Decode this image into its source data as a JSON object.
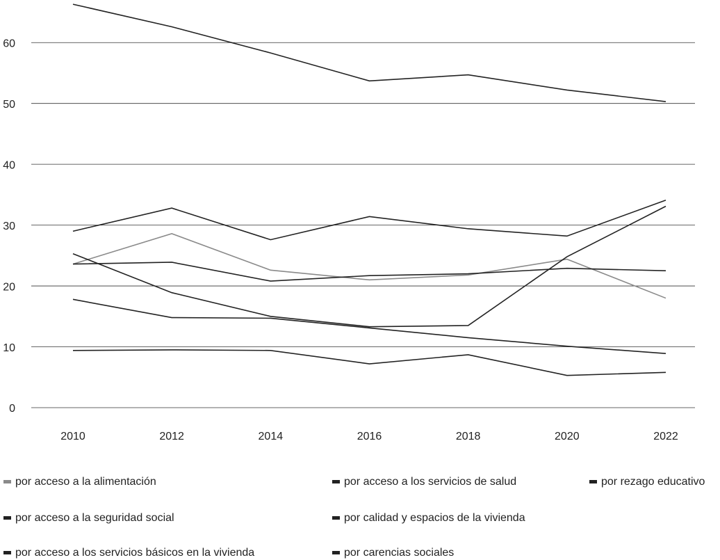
{
  "chart_data": {
    "type": "line",
    "categories": [
      "2010",
      "2012",
      "2014",
      "2016",
      "2018",
      "2020",
      "2022"
    ],
    "ylim": [
      0,
      67
    ],
    "yticks": [
      0,
      10,
      20,
      30,
      40,
      50,
      60
    ],
    "grid": true,
    "series": [
      {
        "name": "por acceso a la alimentación",
        "color": "#8a8a8a",
        "values": [
          23.6,
          28.6,
          22.6,
          21.0,
          21.8,
          24.4,
          18.0
        ]
      },
      {
        "name": "por acceso a los servicios de salud",
        "color": "#222222",
        "values": [
          25.3,
          18.9,
          15.0,
          13.3,
          13.5,
          24.8,
          33.1
        ]
      },
      {
        "name": "por rezago educativo",
        "color": "#222222",
        "values": [
          23.6,
          23.9,
          20.8,
          21.7,
          22.0,
          22.9,
          22.5
        ]
      },
      {
        "name": "por acceso a la seguridad social",
        "color": "#222222",
        "values": [
          66.3,
          62.6,
          58.3,
          53.7,
          54.7,
          52.2,
          50.3
        ]
      },
      {
        "name": "por calidad y espacios de la vivienda",
        "color": "#222222",
        "values": [
          17.8,
          14.8,
          14.7,
          13.1,
          11.5,
          10.1,
          8.9
        ]
      },
      {
        "name": "por acceso a los servicios básicos en la vivienda",
        "color": "#222222",
        "values": [
          29.0,
          32.8,
          27.6,
          31.4,
          29.4,
          28.2,
          34.1
        ]
      },
      {
        "name": "por carencias sociales",
        "color": "#222222",
        "values": [
          9.4,
          9.5,
          9.4,
          7.2,
          8.7,
          5.3,
          5.8
        ]
      }
    ]
  }
}
